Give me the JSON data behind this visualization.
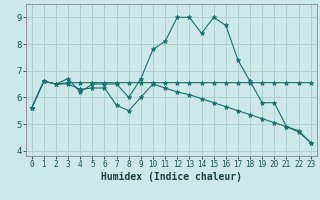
{
  "xlabel": "Humidex (Indice chaleur)",
  "background_color": "#cce8e8",
  "grid_color": "#aacccc",
  "line_color": "#1a7070",
  "xlim": [
    -0.5,
    23.5
  ],
  "ylim": [
    3.8,
    9.5
  ],
  "xticks": [
    0,
    1,
    2,
    3,
    4,
    5,
    6,
    7,
    8,
    9,
    10,
    11,
    12,
    13,
    14,
    15,
    16,
    17,
    18,
    19,
    20,
    21,
    22,
    23
  ],
  "yticks": [
    4,
    5,
    6,
    7,
    8,
    9
  ],
  "series1": [
    5.6,
    6.6,
    6.5,
    6.7,
    6.2,
    6.5,
    6.5,
    6.5,
    6.0,
    6.7,
    7.8,
    8.1,
    9.0,
    9.0,
    8.4,
    9.0,
    8.7,
    7.4,
    6.6,
    5.8,
    5.8,
    4.9,
    4.7,
    4.3
  ],
  "series2": [
    5.6,
    6.6,
    6.5,
    6.55,
    6.55,
    6.55,
    6.55,
    6.55,
    6.55,
    6.55,
    6.55,
    6.55,
    6.55,
    6.55,
    6.55,
    6.55,
    6.55,
    6.55,
    6.55,
    6.55,
    6.55,
    6.55,
    6.55,
    6.55
  ],
  "series3": [
    5.6,
    6.6,
    6.5,
    6.5,
    6.3,
    6.35,
    6.35,
    5.7,
    5.5,
    6.0,
    6.5,
    6.35,
    6.2,
    6.1,
    5.95,
    5.8,
    5.65,
    5.5,
    5.35,
    5.2,
    5.05,
    4.9,
    4.75,
    4.3
  ]
}
